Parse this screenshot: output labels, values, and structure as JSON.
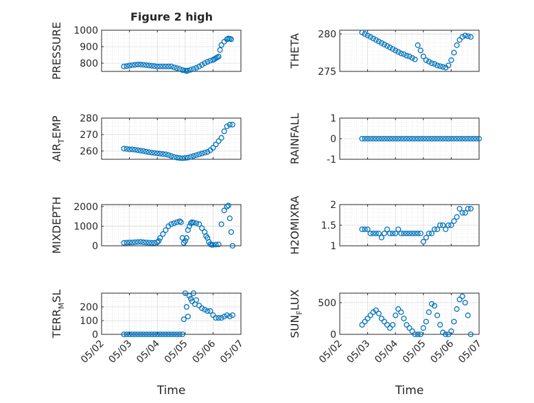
{
  "title": "Figure 2 high",
  "xlabel": "Time",
  "x_tick_labels": [
    "05/02",
    "05/03",
    "05/04",
    "05/05",
    "05/06",
    "05/07"
  ],
  "marker_color": "#0072BD",
  "chart_data": [
    {
      "type": "scatter",
      "ylabel": "PRESSURE",
      "ylim": [
        750,
        1000
      ],
      "yticks": [
        800,
        900,
        1000
      ],
      "xlim": [
        0,
        5
      ],
      "x": [
        0.8,
        0.9,
        1.0,
        1.1,
        1.2,
        1.3,
        1.4,
        1.5,
        1.6,
        1.7,
        1.8,
        1.9,
        2.0,
        2.1,
        2.2,
        2.3,
        2.4,
        2.5,
        2.6,
        2.7,
        2.8,
        2.9,
        3.0,
        3.05,
        3.1,
        3.2,
        3.3,
        3.4,
        3.5,
        3.6,
        3.7,
        3.8,
        3.9,
        4.0,
        4.05,
        4.1,
        4.15,
        4.2,
        4.25,
        4.3,
        4.4,
        4.5,
        4.55,
        4.6,
        4.65
      ],
      "y": [
        780,
        782,
        785,
        788,
        790,
        792,
        792,
        790,
        788,
        786,
        784,
        782,
        780,
        780,
        780,
        780,
        780,
        780,
        775,
        770,
        765,
        758,
        755,
        752,
        755,
        760,
        765,
        772,
        780,
        790,
        800,
        808,
        815,
        820,
        825,
        830,
        835,
        840,
        880,
        910,
        930,
        945,
        950,
        948,
        945
      ],
      "grid": true
    },
    {
      "type": "scatter",
      "ylabel": "THETA",
      "ylim": [
        275,
        280.5
      ],
      "yticks": [
        275,
        280
      ],
      "xlim": [
        0,
        5
      ],
      "x": [
        0.8,
        0.9,
        1.0,
        1.1,
        1.2,
        1.3,
        1.4,
        1.5,
        1.6,
        1.7,
        1.8,
        1.9,
        2.0,
        2.1,
        2.2,
        2.3,
        2.4,
        2.5,
        2.6,
        2.7,
        2.8,
        2.9,
        3.0,
        3.1,
        3.2,
        3.3,
        3.4,
        3.5,
        3.6,
        3.7,
        3.8,
        3.9,
        4.0,
        4.1,
        4.2,
        4.3,
        4.4,
        4.5,
        4.6,
        4.7
      ],
      "y": [
        280.2,
        280.0,
        279.8,
        279.6,
        279.4,
        279.2,
        279.0,
        278.8,
        278.6,
        278.4,
        278.2,
        278.0,
        277.8,
        277.6,
        277.4,
        277.3,
        277.1,
        277.0,
        276.8,
        276.6,
        278.5,
        277.8,
        277.0,
        276.5,
        276.3,
        276.1,
        276.0,
        275.8,
        275.7,
        275.6,
        275.5,
        275.8,
        276.5,
        277.5,
        278.5,
        279.2,
        279.6,
        279.8,
        279.7,
        279.6
      ],
      "grid": true
    },
    {
      "type": "scatter",
      "ylabel": "AIR_TEMP",
      "ylim": [
        255,
        280
      ],
      "yticks": [
        260,
        270,
        280
      ],
      "xlim": [
        0,
        5
      ],
      "x": [
        0.8,
        0.9,
        1.0,
        1.1,
        1.2,
        1.3,
        1.4,
        1.5,
        1.6,
        1.7,
        1.8,
        1.9,
        2.0,
        2.1,
        2.2,
        2.3,
        2.4,
        2.5,
        2.6,
        2.7,
        2.8,
        2.9,
        3.0,
        3.1,
        3.2,
        3.3,
        3.4,
        3.5,
        3.6,
        3.7,
        3.8,
        3.9,
        4.0,
        4.1,
        4.2,
        4.3,
        4.4,
        4.5,
        4.6,
        4.7
      ],
      "y": [
        261.5,
        261.3,
        261.0,
        261.0,
        260.8,
        260.5,
        260.2,
        260.0,
        259.6,
        259.3,
        259.0,
        258.8,
        258.6,
        258.4,
        258.2,
        258.0,
        257.6,
        257.0,
        256.4,
        256.0,
        255.8,
        255.6,
        255.8,
        256.0,
        256.5,
        257.0,
        257.5,
        258.0,
        258.5,
        259.0,
        259.5,
        260.5,
        262,
        264,
        266,
        268,
        272,
        275,
        276,
        276
      ],
      "grid": true
    },
    {
      "type": "scatter",
      "ylabel": "RAINFALL",
      "ylim": [
        -1,
        1
      ],
      "yticks": [
        -1,
        0,
        1
      ],
      "xlim": [
        0,
        5
      ],
      "x": [
        0.8,
        0.9,
        1.0,
        1.1,
        1.2,
        1.3,
        1.4,
        1.5,
        1.6,
        1.7,
        1.8,
        1.9,
        2.0,
        2.1,
        2.2,
        2.3,
        2.4,
        2.5,
        2.6,
        2.7,
        2.8,
        2.9,
        3.0,
        3.1,
        3.2,
        3.3,
        3.4,
        3.5,
        3.6,
        3.7,
        3.8,
        3.9,
        4.0,
        4.1,
        4.2,
        4.3,
        4.4,
        4.5,
        4.6,
        4.7,
        4.8,
        4.9,
        5.0
      ],
      "y": [
        0,
        0,
        0,
        0,
        0,
        0,
        0,
        0,
        0,
        0,
        0,
        0,
        0,
        0,
        0,
        0,
        0,
        0,
        0,
        0,
        0,
        0,
        0,
        0,
        0,
        0,
        0,
        0,
        0,
        0,
        0,
        0,
        0,
        0,
        0,
        0,
        0,
        0,
        0,
        0,
        0,
        0,
        0
      ],
      "grid": true
    },
    {
      "type": "scatter",
      "ylabel": "MIXDEPTH",
      "ylim": [
        0,
        2100
      ],
      "yticks": [
        0,
        1000,
        2000
      ],
      "xlim": [
        0,
        5
      ],
      "x": [
        0.8,
        0.9,
        1.0,
        1.1,
        1.2,
        1.3,
        1.4,
        1.5,
        1.6,
        1.7,
        1.8,
        1.9,
        2.0,
        2.05,
        2.1,
        2.2,
        2.3,
        2.4,
        2.5,
        2.6,
        2.7,
        2.8,
        2.85,
        2.9,
        2.95,
        3.0,
        3.05,
        3.1,
        3.15,
        3.2,
        3.25,
        3.3,
        3.4,
        3.5,
        3.6,
        3.7,
        3.75,
        3.8,
        3.85,
        3.9,
        3.95,
        4.0,
        4.1,
        4.2,
        4.3,
        4.4,
        4.5,
        4.55,
        4.6,
        4.65,
        4.7
      ],
      "y": [
        150,
        160,
        170,
        170,
        180,
        190,
        200,
        180,
        170,
        160,
        150,
        150,
        180,
        250,
        400,
        600,
        800,
        1000,
        1100,
        1150,
        1200,
        1250,
        1200,
        400,
        150,
        250,
        400,
        800,
        1000,
        1150,
        1200,
        1180,
        1150,
        1100,
        900,
        700,
        500,
        400,
        200,
        80,
        50,
        50,
        60,
        70,
        1100,
        1800,
        2000,
        2050,
        1400,
        700,
        0
      ],
      "grid": true
    },
    {
      "type": "scatter",
      "ylabel": "H2OMIXRA",
      "ylim": [
        1,
        2
      ],
      "yticks": [
        1,
        1.5,
        2
      ],
      "xlim": [
        0,
        5
      ],
      "x": [
        0.8,
        0.9,
        1.0,
        1.1,
        1.2,
        1.3,
        1.4,
        1.5,
        1.6,
        1.7,
        1.8,
        1.9,
        2.0,
        2.1,
        2.2,
        2.3,
        2.4,
        2.5,
        2.6,
        2.7,
        2.8,
        2.9,
        3.0,
        3.1,
        3.2,
        3.3,
        3.4,
        3.5,
        3.6,
        3.7,
        3.8,
        3.9,
        4.0,
        4.1,
        4.2,
        4.3,
        4.4,
        4.5,
        4.6,
        4.7
      ],
      "y": [
        1.4,
        1.4,
        1.4,
        1.3,
        1.3,
        1.3,
        1.3,
        1.2,
        1.3,
        1.4,
        1.3,
        1.3,
        1.3,
        1.4,
        1.3,
        1.3,
        1.3,
        1.3,
        1.3,
        1.3,
        1.3,
        1.3,
        1.1,
        1.2,
        1.3,
        1.3,
        1.4,
        1.4,
        1.5,
        1.5,
        1.4,
        1.5,
        1.5,
        1.6,
        1.7,
        1.9,
        1.8,
        1.8,
        1.9,
        1.9
      ],
      "grid": true
    },
    {
      "type": "scatter",
      "ylabel": "TERR_MSL",
      "ylim": [
        0,
        300
      ],
      "yticks": [
        0,
        100,
        200
      ],
      "xlim": [
        0,
        5
      ],
      "x": [
        0.8,
        0.9,
        1.0,
        1.1,
        1.2,
        1.3,
        1.4,
        1.5,
        1.6,
        1.7,
        1.8,
        1.9,
        2.0,
        2.1,
        2.2,
        2.3,
        2.4,
        2.5,
        2.6,
        2.7,
        2.8,
        2.9,
        2.95,
        3.0,
        3.05,
        3.1,
        3.15,
        3.2,
        3.25,
        3.3,
        3.35,
        3.4,
        3.5,
        3.6,
        3.7,
        3.8,
        3.9,
        4.0,
        4.1,
        4.2,
        4.3,
        4.4,
        4.5,
        4.6,
        4.7
      ],
      "y": [
        0,
        0,
        0,
        0,
        0,
        0,
        0,
        0,
        0,
        0,
        0,
        0,
        0,
        0,
        0,
        0,
        0,
        0,
        0,
        0,
        0,
        0,
        110,
        300,
        200,
        130,
        280,
        260,
        240,
        300,
        220,
        250,
        210,
        190,
        180,
        170,
        170,
        140,
        120,
        120,
        120,
        130,
        140,
        130,
        140
      ],
      "grid": true
    },
    {
      "type": "scatter",
      "ylabel": "SUN_FLUX",
      "ylim": [
        0,
        650
      ],
      "yticks": [
        0,
        500
      ],
      "xlim": [
        0,
        5
      ],
      "x": [
        0.8,
        0.9,
        1.0,
        1.1,
        1.2,
        1.3,
        1.4,
        1.5,
        1.6,
        1.7,
        1.8,
        1.9,
        2.0,
        2.1,
        2.2,
        2.3,
        2.4,
        2.5,
        2.6,
        2.7,
        2.8,
        2.9,
        3.0,
        3.1,
        3.2,
        3.3,
        3.4,
        3.5,
        3.6,
        3.7,
        3.8,
        3.9,
        4.0,
        4.1,
        4.2,
        4.3,
        4.4,
        4.5,
        4.6,
        4.7
      ],
      "y": [
        150,
        200,
        250,
        300,
        350,
        380,
        330,
        250,
        200,
        150,
        100,
        150,
        300,
        400,
        350,
        250,
        150,
        100,
        50,
        0,
        0,
        0,
        100,
        200,
        350,
        480,
        450,
        300,
        150,
        30,
        0,
        0,
        50,
        200,
        400,
        550,
        600,
        500,
        300,
        0
      ],
      "grid": true
    }
  ]
}
